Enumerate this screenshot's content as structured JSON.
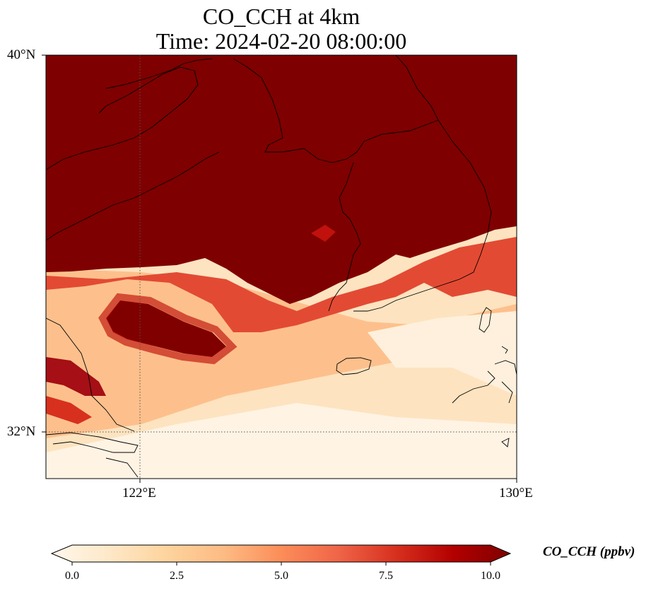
{
  "title": {
    "line1": "CO_CCH at 4km",
    "line2": "Time: 2024-02-20 08:00:00"
  },
  "map": {
    "lat_labels": [
      "40°N",
      "32°N"
    ],
    "lon_labels": [
      "122°E",
      "130°E"
    ],
    "extent": {
      "lon": [
        120,
        130
      ],
      "lat": [
        31,
        40
      ]
    },
    "gridline_lon": 122,
    "gridline_lat": 32,
    "colormap": "OrRd",
    "field_description": "CO concentration: saturated (>=10 ppbv) over the northern half incl. Korea and northern Yellow Sea; low values (0–3 ppbv) over East China Sea and southern area; high band near 121.5–123.5°E, 34–35°N"
  },
  "colorbar": {
    "label": "CO_CCH (ppbv)",
    "ticks": [
      "0.0",
      "2.5",
      "5.0",
      "7.5",
      "10.0"
    ],
    "min": 0,
    "max": 10,
    "extend": "both",
    "colors": [
      "#fff7ec",
      "#fee8c8",
      "#fdd49e",
      "#fdbb84",
      "#fc8d59",
      "#ef6548",
      "#d7301f",
      "#b30000",
      "#7f0000"
    ]
  }
}
